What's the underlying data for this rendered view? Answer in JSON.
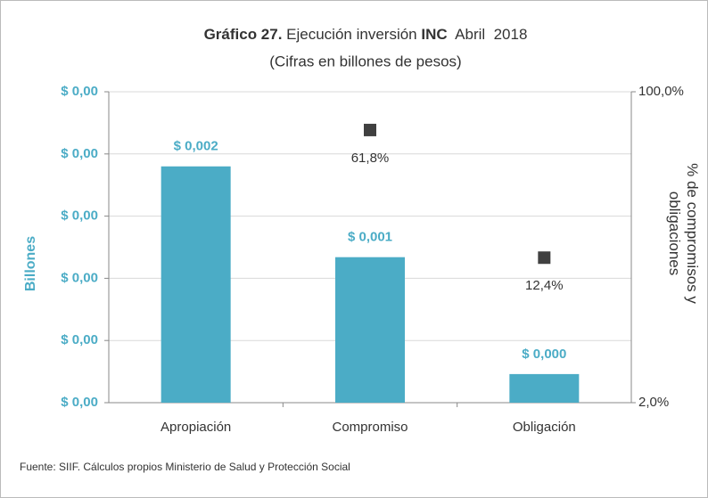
{
  "chart_data": {
    "type": "bar",
    "title": [
      {
        "text": "Gráfico 27.",
        "bold": true
      },
      {
        "text": " Ejecución inversión ",
        "bold": false
      },
      {
        "text": "INC",
        "bold": true
      },
      {
        "text": "  Abril  2018",
        "bold": false
      }
    ],
    "subtitle": "(Cifras en billones de pesos)",
    "ylabel": "Billones",
    "y2label": [
      "% de compromisos y",
      "obligaciones"
    ],
    "source": "Fuente: SIIF. Cálculos propios Ministerio de Salud y Protección Social",
    "categories": [
      "Apropiación",
      "Compromiso",
      "Obligación"
    ],
    "series": [
      {
        "type": "bar",
        "color": "#4bacc6",
        "values": [
          0.0019,
          0.00117,
          0.00023
        ],
        "value_labels": [
          "$ 0,002",
          "$ 0,001",
          "$ 0,000"
        ]
      },
      {
        "type": "scatter",
        "axis": "y2",
        "color": "#404040",
        "values": [
          null,
          61.8,
          12.4
        ],
        "value_labels": [
          null,
          "61,8%",
          "12,4%"
        ]
      }
    ],
    "ylim": [
      0,
      0.0025
    ],
    "yticks": [
      {
        "value": 0,
        "label": "$ 0,00"
      },
      {
        "value": 0.0005,
        "label": "$ 0,00"
      },
      {
        "value": 0.001,
        "label": "$ 0,00"
      },
      {
        "value": 0.0015,
        "label": "$ 0,00"
      },
      {
        "value": 0.002,
        "label": "$ 0,00"
      },
      {
        "value": 0.0025,
        "label": "$ 0,00"
      }
    ],
    "y2lim": [
      2,
      100
    ],
    "y2log": true,
    "y2ticks": [
      {
        "value": 2,
        "label": "2,0%"
      },
      {
        "value": 100,
        "label": "100,0%"
      }
    ],
    "grid": true
  }
}
